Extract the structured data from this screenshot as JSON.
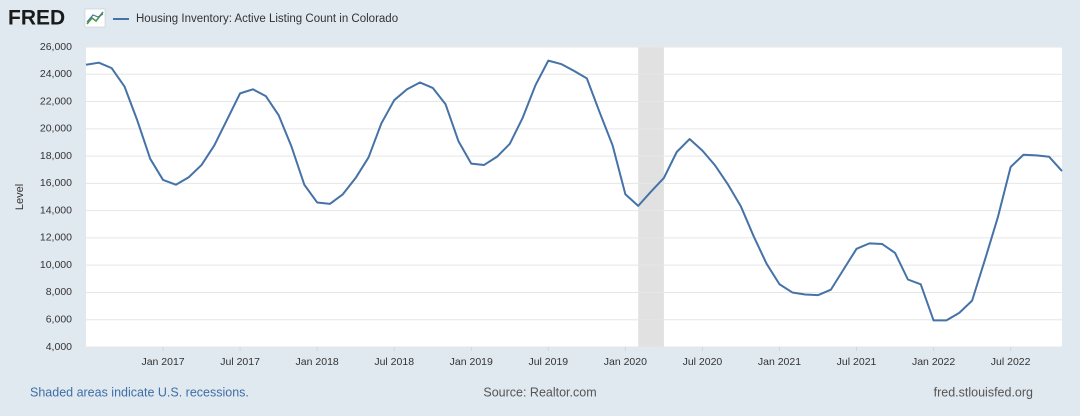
{
  "chart_data": {
    "type": "line",
    "logo": "FRED",
    "x_label": "",
    "y_label": "Level",
    "note": "Shaded areas indicate U.S. recessions.",
    "source": "Source: Realtor.com",
    "site": "fred.stlouisfed.org",
    "x": [
      "2016-07",
      "2016-08",
      "2016-09",
      "2016-10",
      "2016-11",
      "2016-12",
      "2017-01",
      "2017-02",
      "2017-03",
      "2017-04",
      "2017-05",
      "2017-06",
      "2017-07",
      "2017-08",
      "2017-09",
      "2017-10",
      "2017-11",
      "2017-12",
      "2018-01",
      "2018-02",
      "2018-03",
      "2018-04",
      "2018-05",
      "2018-06",
      "2018-07",
      "2018-08",
      "2018-09",
      "2018-10",
      "2018-11",
      "2018-12",
      "2019-01",
      "2019-02",
      "2019-03",
      "2019-04",
      "2019-05",
      "2019-06",
      "2019-07",
      "2019-08",
      "2019-09",
      "2019-10",
      "2019-11",
      "2019-12",
      "2020-01",
      "2020-02",
      "2020-03",
      "2020-04",
      "2020-05",
      "2020-06",
      "2020-07",
      "2020-08",
      "2020-09",
      "2020-10",
      "2020-11",
      "2020-12",
      "2021-01",
      "2021-02",
      "2021-03",
      "2021-04",
      "2021-05",
      "2021-06",
      "2021-07",
      "2021-08",
      "2021-09",
      "2021-10",
      "2021-11",
      "2021-12",
      "2022-01",
      "2022-02",
      "2022-03",
      "2022-04",
      "2022-05",
      "2022-06",
      "2022-07",
      "2022-08",
      "2022-09",
      "2022-10",
      "2022-11"
    ],
    "series": [
      {
        "name": "Housing Inventory: Active Listing Count in Colorado",
        "color": "#4572a7",
        "values": [
          24700,
          24850,
          24450,
          23100,
          20600,
          17800,
          16250,
          15900,
          16450,
          17350,
          18800,
          20700,
          22600,
          22900,
          22400,
          21000,
          18700,
          15900,
          14600,
          14500,
          15200,
          16400,
          17900,
          20400,
          22100,
          22900,
          23400,
          23000,
          21800,
          19100,
          17450,
          17350,
          17950,
          18900,
          20800,
          23200,
          25000,
          24750,
          24250,
          23700,
          21200,
          18800,
          15200,
          14350,
          15400,
          16400,
          18300,
          19250,
          18400,
          17300,
          15900,
          14300,
          12100,
          10100,
          8600,
          8000,
          7850,
          7800,
          8200,
          9700,
          11200,
          11600,
          11550,
          10900,
          8950,
          8600,
          5950,
          5950,
          6500,
          7400,
          10400,
          13500,
          17200,
          18100,
          18050,
          17950,
          16900
        ]
      }
    ],
    "shaded_periods": [
      [
        "2020-02",
        "2020-04"
      ]
    ],
    "shade_color": "#e1e1e1",
    "xlim": [
      "2016-07",
      "2022-11"
    ],
    "xticks": [
      {
        "value": "2017-01",
        "label": "Jan 2017"
      },
      {
        "value": "2017-07",
        "label": "Jul 2017"
      },
      {
        "value": "2018-01",
        "label": "Jan 2018"
      },
      {
        "value": "2018-07",
        "label": "Jul 2018"
      },
      {
        "value": "2019-01",
        "label": "Jan 2019"
      },
      {
        "value": "2019-07",
        "label": "Jul 2019"
      },
      {
        "value": "2020-01",
        "label": "Jan 2020"
      },
      {
        "value": "2020-07",
        "label": "Jul 2020"
      },
      {
        "value": "2021-01",
        "label": "Jan 2021"
      },
      {
        "value": "2021-07",
        "label": "Jul 2021"
      },
      {
        "value": "2022-01",
        "label": "Jan 2022"
      },
      {
        "value": "2022-07",
        "label": "Jul 2022"
      }
    ],
    "ylim": [
      4000,
      26000
    ],
    "yticks": [
      {
        "value": 4000,
        "label": "4,000"
      },
      {
        "value": 6000,
        "label": "6,000"
      },
      {
        "value": 8000,
        "label": "8,000"
      },
      {
        "value": 10000,
        "label": "10,000"
      },
      {
        "value": 12000,
        "label": "12,000"
      },
      {
        "value": 14000,
        "label": "14,000"
      },
      {
        "value": 16000,
        "label": "16,000"
      },
      {
        "value": 18000,
        "label": "18,000"
      },
      {
        "value": 20000,
        "label": "20,000"
      },
      {
        "value": 22000,
        "label": "22,000"
      },
      {
        "value": 24000,
        "label": "24,000"
      },
      {
        "value": 26000,
        "label": "26,000"
      }
    ],
    "grid": true
  }
}
